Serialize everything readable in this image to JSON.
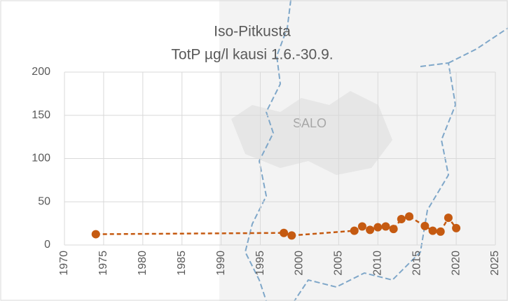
{
  "chart_data": {
    "type": "line",
    "title": "Iso-Pitkusta",
    "subtitle": "TotP µg/l kausi 1.6.-30.9.",
    "map_label": "SALO",
    "x": [
      1974,
      1998,
      1999,
      2007,
      2008,
      2009,
      2010,
      2011,
      2012,
      2013,
      2014,
      2016,
      2017,
      2018,
      2019,
      2020
    ],
    "series": [
      {
        "name": "TotP",
        "color": "#c55a11",
        "values": [
          12.5,
          14,
          11,
          16.5,
          21.5,
          17.5,
          20.5,
          21.5,
          18.5,
          30,
          33,
          22,
          16.5,
          15.5,
          31.5,
          19.5
        ]
      }
    ],
    "xlim": [
      1970,
      2025
    ],
    "xticks": [
      1970,
      1975,
      1980,
      1985,
      1990,
      1995,
      2000,
      2005,
      2010,
      2015,
      2020,
      2025
    ],
    "ylim": [
      0,
      200
    ],
    "yticks": [
      0,
      50,
      100,
      150,
      200
    ],
    "grid": true,
    "dashed": true
  }
}
